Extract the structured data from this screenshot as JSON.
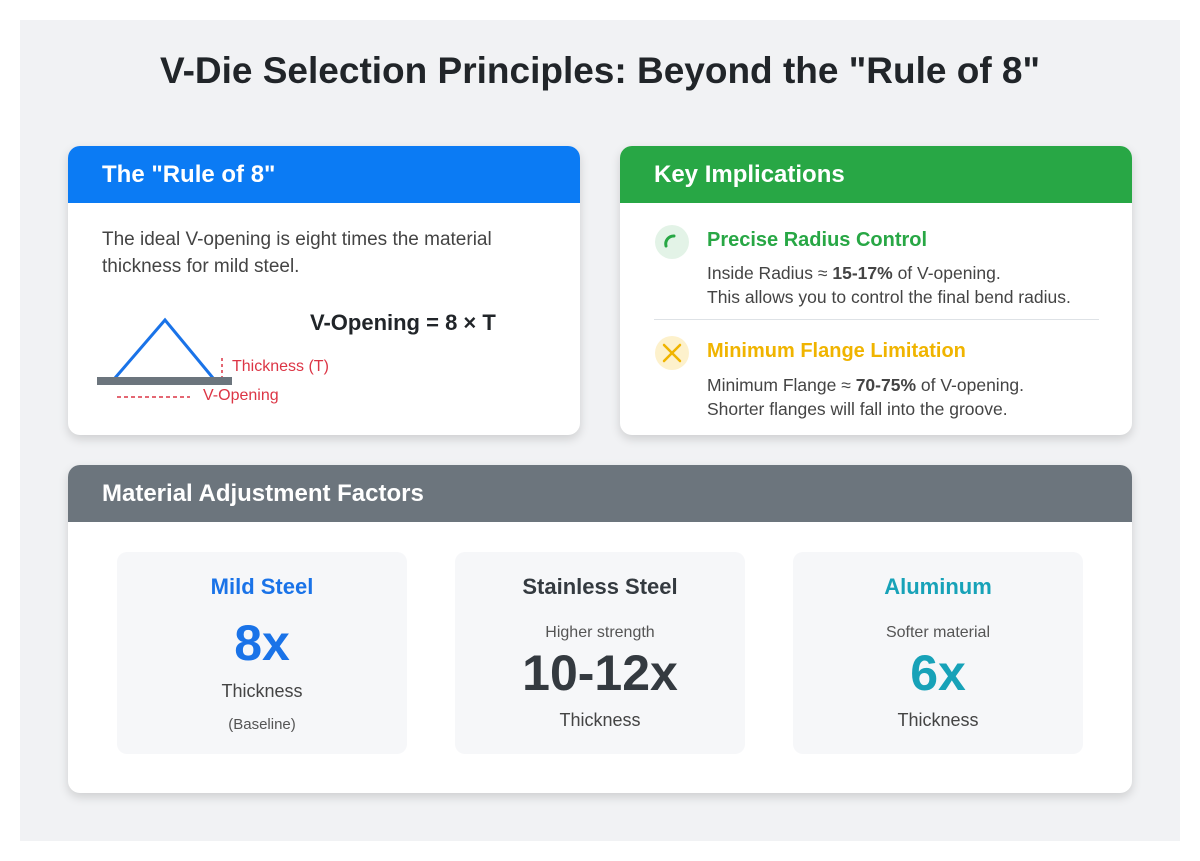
{
  "title": "V-Die Selection Principles: Beyond the \"Rule of 8\"",
  "rule_card": {
    "header": "The \"Rule of 8\"",
    "description": "The ideal V-opening is eight times the material thickness for mild steel.",
    "formula": "V-Opening = 8 × T",
    "diagram": {
      "thickness_label": "Thickness (T)",
      "opening_label": "V-Opening"
    }
  },
  "implications_card": {
    "header": "Key Implications",
    "items": [
      {
        "title": "Precise Radius Control",
        "line1": {
          "before": "Inside Radius ≈ ",
          "bold": "15-17%",
          "after": " of V-opening."
        },
        "line2": "This allows you to control the final bend radius."
      },
      {
        "title": "Minimum Flange Limitation",
        "line1": {
          "before": "Minimum Flange ≈ ",
          "bold": "70-75%",
          "after": " of V-opening."
        },
        "line2": "Shorter flanges will fall into the groove."
      }
    ]
  },
  "materials_card": {
    "header": "Material Adjustment Factors",
    "materials": [
      {
        "name": "Mild Steel",
        "factor": "8x",
        "unit": "Thickness",
        "footnote": "(Baseline)"
      },
      {
        "name": "Stainless Steel",
        "note": "Higher strength",
        "factor": "10-12x",
        "unit": "Thickness"
      },
      {
        "name": "Aluminum",
        "note": "Softer material",
        "factor": "6x",
        "unit": "Thickness"
      }
    ]
  }
}
